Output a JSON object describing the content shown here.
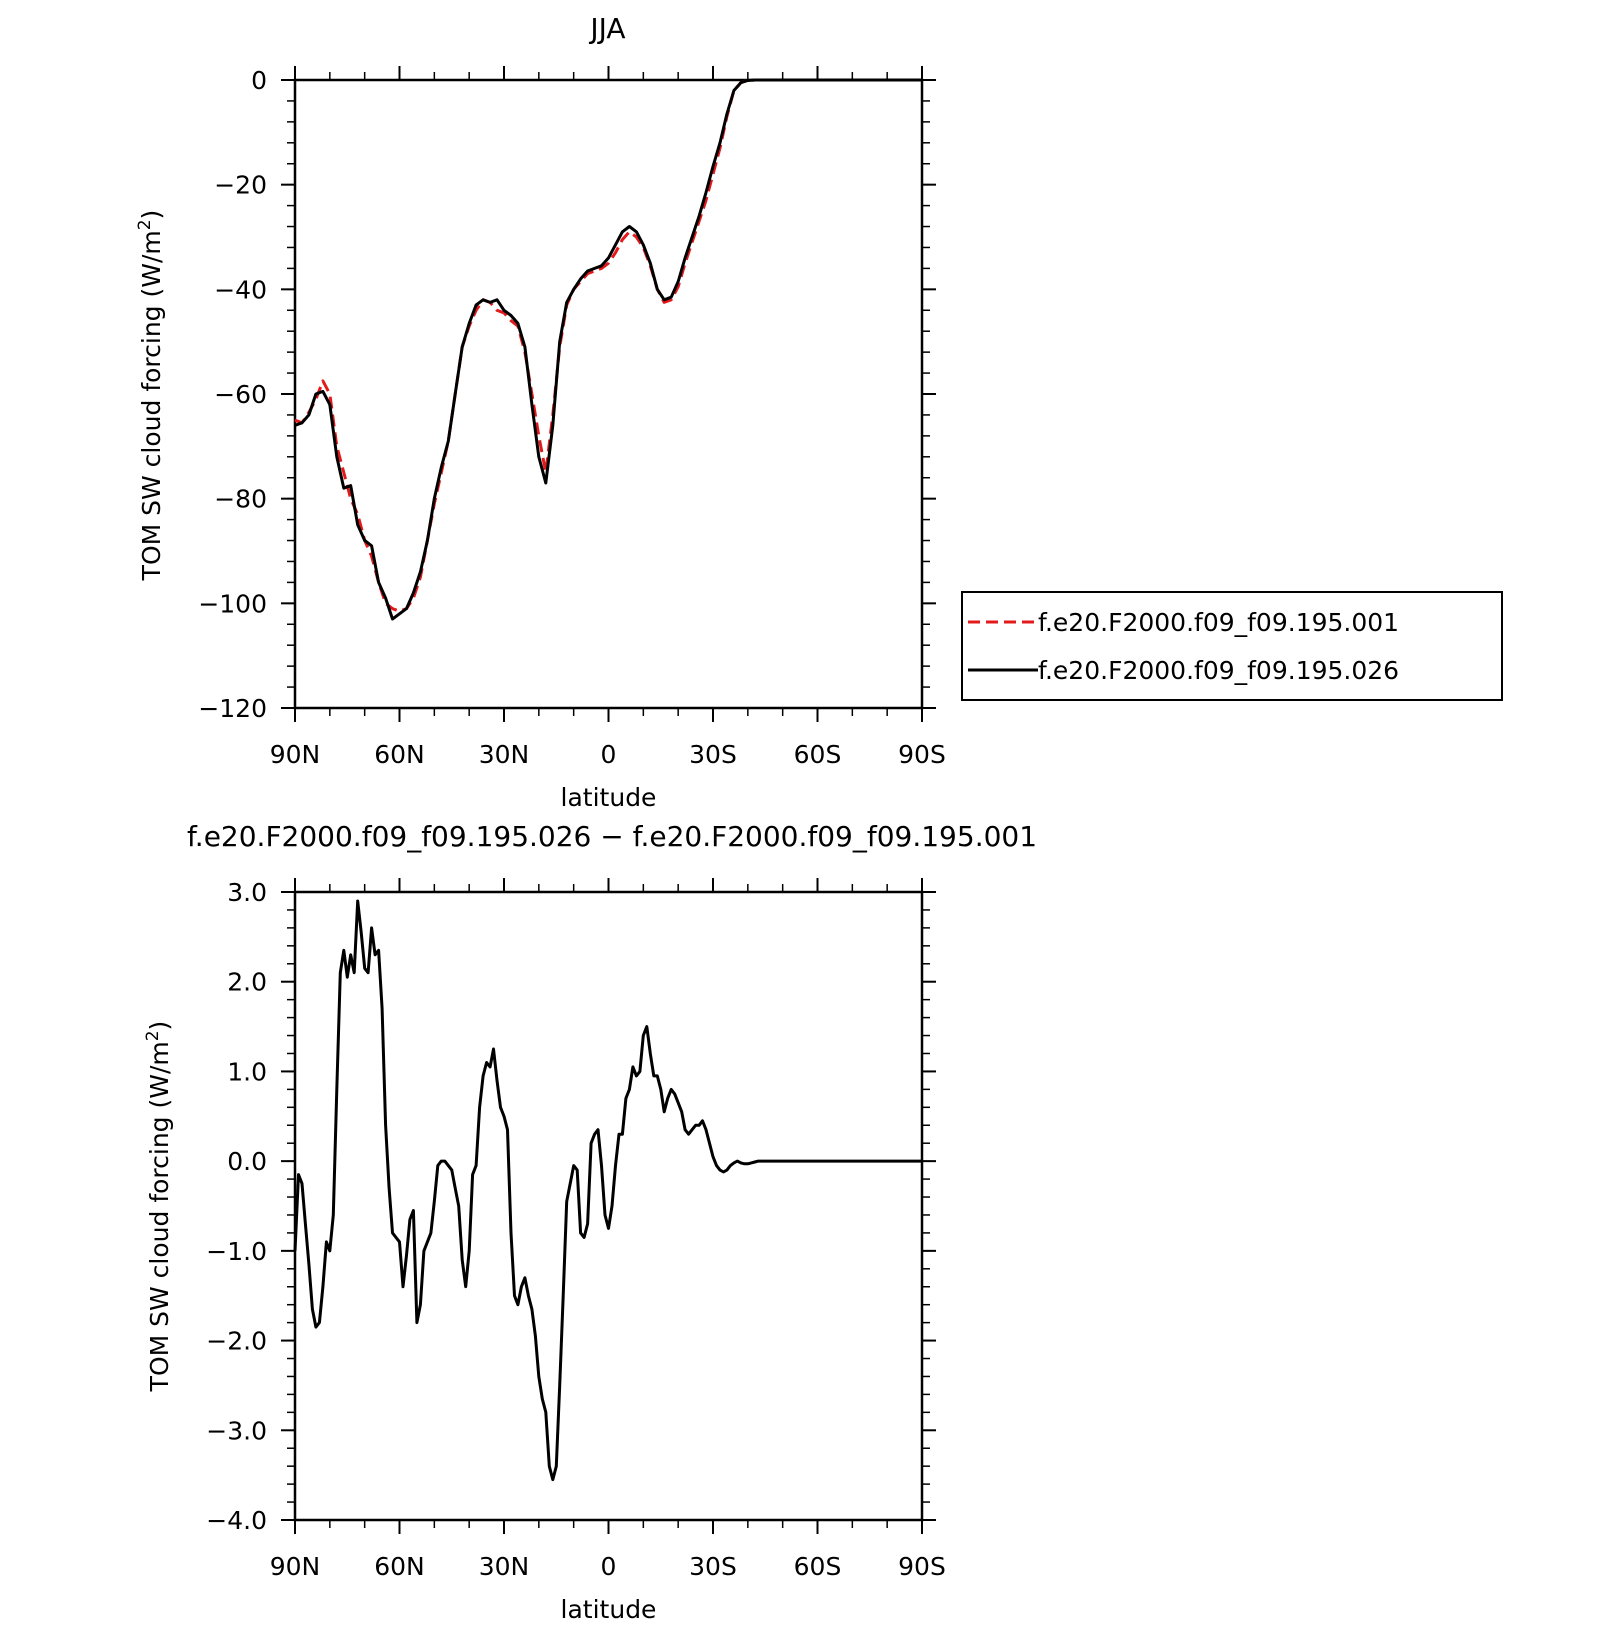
{
  "chart_data": [
    {
      "type": "line",
      "title": "JJA",
      "xlabel": "latitude",
      "ylabel": "TOM SW cloud forcing (W/m",
      "ylabel_sup": "2",
      "ylabel_tail": ")",
      "xlim": [
        90,
        -90
      ],
      "ylim": [
        -120,
        0
      ],
      "x_ticks": [
        90,
        60,
        30,
        0,
        -30,
        -60,
        -90
      ],
      "x_tick_labels": [
        "90N",
        "60N",
        "30N",
        "0",
        "30S",
        "60S",
        "90S"
      ],
      "y_ticks": [
        0,
        -20,
        -40,
        -60,
        -80,
        -100,
        -120
      ],
      "y_tick_labels": [
        "0",
        "−20",
        "−40",
        "−60",
        "−80",
        "−100",
        "−120"
      ],
      "legend": "right",
      "x": [
        90,
        88,
        86,
        84,
        82,
        80,
        78,
        76,
        74,
        72,
        70,
        68,
        66,
        64,
        62,
        60,
        58,
        56,
        54,
        52,
        50,
        48,
        46,
        44,
        42,
        40,
        38,
        36,
        34,
        32,
        30,
        28,
        26,
        24,
        22,
        20,
        18,
        16,
        14,
        12,
        10,
        8,
        6,
        4,
        2,
        0,
        -2,
        -4,
        -6,
        -8,
        -10,
        -12,
        -14,
        -16,
        -18,
        -20,
        -22,
        -24,
        -26,
        -28,
        -30,
        -32,
        -34,
        -36,
        -38,
        -40,
        -42,
        -44,
        -46,
        -48,
        -50,
        -52,
        -54,
        -56,
        -58,
        -60,
        -62,
        -64,
        -66,
        -68,
        -70,
        -75,
        -80,
        -85,
        -90
      ],
      "series": [
        {
          "name": "f.e20.F2000.f09_f09.195.001",
          "color": "#e31a1c",
          "dash": true,
          "values": [
            -65,
            -65.5,
            -63.5,
            -61,
            -57.5,
            -60,
            -70,
            -75,
            -80,
            -83,
            -88,
            -91,
            -96,
            -100,
            -101,
            -101.5,
            -101,
            -99,
            -95,
            -88,
            -81,
            -75,
            -69,
            -60,
            -51,
            -47,
            -44,
            -42,
            -42.5,
            -44,
            -44.5,
            -46,
            -47,
            -52,
            -60,
            -68,
            -75,
            -64,
            -51,
            -43,
            -40,
            -38.5,
            -37,
            -36.5,
            -36,
            -35,
            -33,
            -30.5,
            -29,
            -30,
            -32,
            -35.5,
            -40,
            -42.5,
            -42,
            -39.5,
            -35,
            -31,
            -27,
            -23,
            -18,
            -13,
            -7,
            -2,
            -0.5,
            -0.1,
            0,
            0,
            0,
            0,
            0,
            0,
            0,
            0,
            0,
            0,
            0,
            0,
            0,
            0,
            0,
            0,
            0,
            0,
            0
          ]
        },
        {
          "name": "f.e20.F2000.f09_f09.195.026",
          "color": "#000000",
          "dash": false,
          "values": [
            -66,
            -65.5,
            -64,
            -60,
            -59.5,
            -62,
            -72,
            -78,
            -77.5,
            -85,
            -88,
            -89,
            -96,
            -99,
            -103,
            -102,
            -101,
            -98,
            -94,
            -88,
            -80,
            -74,
            -69,
            -60,
            -51,
            -46.5,
            -43,
            -42,
            -42.5,
            -42,
            -44,
            -45,
            -46.5,
            -51,
            -62,
            -72,
            -77,
            -66,
            -50,
            -42.5,
            -40,
            -38,
            -36.5,
            -36,
            -35.5,
            -34,
            -31.5,
            -29,
            -28,
            -29,
            -31.5,
            -35,
            -40,
            -42,
            -41.5,
            -38.5,
            -34,
            -30,
            -26,
            -21.5,
            -16.5,
            -12,
            -6.5,
            -2,
            -0.5,
            -0.1,
            0,
            0,
            0,
            0,
            0,
            0,
            0,
            0,
            0,
            0,
            0,
            0,
            0,
            0,
            0,
            0,
            0,
            0,
            0
          ]
        }
      ]
    },
    {
      "type": "line",
      "title": "f.e20.F2000.f09_f09.195.026 − f.e20.F2000.f09_f09.195.001",
      "xlabel": "latitude",
      "ylabel": "TOM SW cloud forcing (W/m",
      "ylabel_sup": "2",
      "ylabel_tail": ")",
      "xlim": [
        90,
        -90
      ],
      "ylim": [
        -4,
        3
      ],
      "x_ticks": [
        90,
        60,
        30,
        0,
        -30,
        -60,
        -90
      ],
      "x_tick_labels": [
        "90N",
        "60N",
        "30N",
        "0",
        "30S",
        "60S",
        "90S"
      ],
      "y_ticks": [
        3,
        2,
        1,
        0,
        -1,
        -2,
        -3,
        -4
      ],
      "y_tick_labels": [
        "3.0",
        "2.0",
        "1.0",
        "0.0",
        "−1.0",
        "−2.0",
        "−3.0",
        "−4.0"
      ],
      "x": [
        90,
        89,
        88,
        87,
        86,
        85,
        84,
        83,
        82,
        81,
        80,
        79,
        78,
        77,
        76,
        75,
        74,
        73,
        72,
        71,
        70,
        69,
        68,
        67,
        66,
        65,
        64,
        63,
        62,
        61,
        60,
        59,
        58,
        57,
        56,
        55,
        54,
        53,
        52,
        51,
        50,
        49,
        48,
        47,
        46,
        45,
        44,
        43,
        42,
        41,
        40,
        39,
        38,
        37,
        36,
        35,
        34,
        33,
        32,
        31,
        30,
        29,
        28,
        27,
        26,
        25,
        24,
        23,
        22,
        21,
        20,
        19,
        18,
        17,
        16,
        15,
        14,
        13,
        12,
        11,
        10,
        9,
        8,
        7,
        6,
        5,
        4,
        3,
        2,
        1,
        0,
        -1,
        -2,
        -3,
        -4,
        -5,
        -6,
        -7,
        -8,
        -9,
        -10,
        -11,
        -12,
        -13,
        -14,
        -15,
        -16,
        -17,
        -18,
        -19,
        -20,
        -21,
        -22,
        -23,
        -24,
        -25,
        -26,
        -27,
        -28,
        -29,
        -30,
        -31,
        -32,
        -33,
        -34,
        -35,
        -36,
        -37,
        -38,
        -39,
        -40,
        -41,
        -42,
        -43,
        -44,
        -45,
        -46,
        -47,
        -48,
        -49,
        -50,
        -51,
        -52,
        -53,
        -54,
        -55,
        -56,
        -57,
        -58,
        -60,
        -62,
        -65,
        -70,
        -75,
        -80,
        -85,
        -90
      ],
      "series": [
        {
          "name": "",
          "color": "#000000",
          "dash": false,
          "values": [
            -1.0,
            -0.15,
            -0.25,
            -0.7,
            -1.15,
            -1.65,
            -1.85,
            -1.8,
            -1.4,
            -0.9,
            -1.0,
            -0.6,
            0.8,
            2.1,
            2.35,
            2.05,
            2.3,
            2.1,
            2.9,
            2.55,
            2.15,
            2.1,
            2.6,
            2.3,
            2.35,
            1.7,
            0.4,
            -0.3,
            -0.8,
            -0.85,
            -0.9,
            -1.4,
            -1.05,
            -0.65,
            -0.55,
            -1.8,
            -1.6,
            -1.0,
            -0.9,
            -0.8,
            -0.45,
            -0.05,
            0.0,
            0.0,
            -0.05,
            -0.1,
            -0.3,
            -0.5,
            -1.1,
            -1.4,
            -1.0,
            -0.15,
            -0.05,
            0.6,
            0.95,
            1.1,
            1.05,
            1.25,
            0.9,
            0.6,
            0.5,
            0.35,
            -0.8,
            -1.5,
            -1.6,
            -1.4,
            -1.3,
            -1.5,
            -1.65,
            -1.95,
            -2.4,
            -2.65,
            -2.8,
            -3.4,
            -3.55,
            -3.4,
            -2.5,
            -1.5,
            -0.45,
            -0.25,
            -0.05,
            -0.1,
            -0.8,
            -0.85,
            -0.7,
            0.2,
            0.3,
            0.35,
            -0.05,
            -0.6,
            -0.75,
            -0.5,
            -0.05,
            0.3,
            0.3,
            0.7,
            0.8,
            1.05,
            0.95,
            1.0,
            1.4,
            1.5,
            1.2,
            0.95,
            0.95,
            0.8,
            0.55,
            0.7,
            0.8,
            0.75,
            0.65,
            0.55,
            0.35,
            0.3,
            0.35,
            0.4,
            0.4,
            0.45,
            0.35,
            0.2,
            0.05,
            -0.05,
            -0.1,
            -0.12,
            -0.1,
            -0.05,
            -0.02,
            0.0,
            -0.02,
            -0.03,
            -0.03,
            -0.02,
            -0.01,
            0.0,
            0.0,
            0.0,
            0.0,
            0.0,
            0.0,
            0.0,
            0.0,
            0.0,
            0.0,
            0.0,
            0.0,
            0.0,
            0.0,
            0.0,
            0.0,
            0.0,
            0.0,
            0.0,
            0.0,
            0.0,
            0.0,
            0.0,
            0.0
          ]
        }
      ]
    }
  ]
}
